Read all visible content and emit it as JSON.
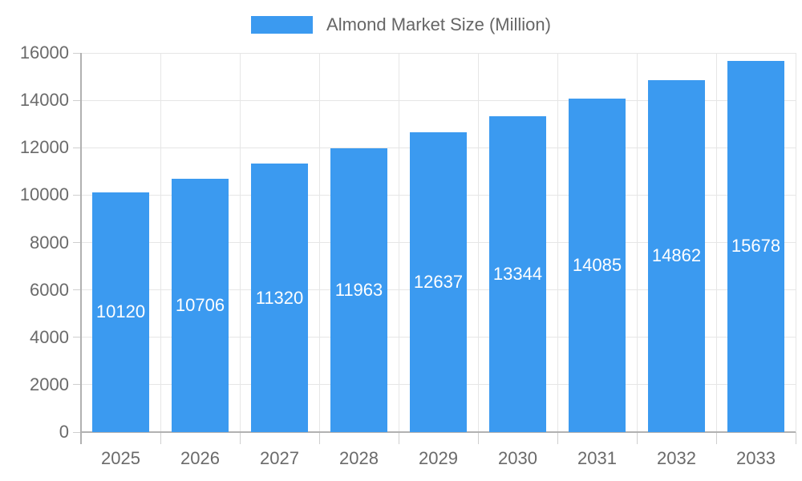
{
  "legend": {
    "label": "Almond Market Size (Million)"
  },
  "colors": {
    "bar": "#3B9AF0",
    "bar_label": "#ffffff",
    "axis_line": "#b1b1b1",
    "gridline": "#e6e6e6",
    "tick_mark": "#cfcfcf",
    "axis_text": "#6a6a6a",
    "legend_text": "#666666",
    "background": "#ffffff"
  },
  "chart_data": {
    "type": "bar",
    "title": "Almond Market Size (Million)",
    "categories": [
      "2025",
      "2026",
      "2027",
      "2028",
      "2029",
      "2030",
      "2031",
      "2032",
      "2033"
    ],
    "values": [
      10120,
      10706,
      11320,
      11963,
      12637,
      13344,
      14085,
      14862,
      15678
    ],
    "series": [
      {
        "name": "Almond Market Size (Million)",
        "values": [
          10120,
          10706,
          11320,
          11963,
          12637,
          13344,
          14085,
          14862,
          15678
        ]
      }
    ],
    "xlabel": "",
    "ylabel": "",
    "ylim": [
      0,
      16000
    ],
    "yticks": [
      0,
      2000,
      4000,
      6000,
      8000,
      10000,
      12000,
      14000,
      16000
    ],
    "grid": true,
    "legend_position": "top",
    "value_labels": "inside-center"
  }
}
